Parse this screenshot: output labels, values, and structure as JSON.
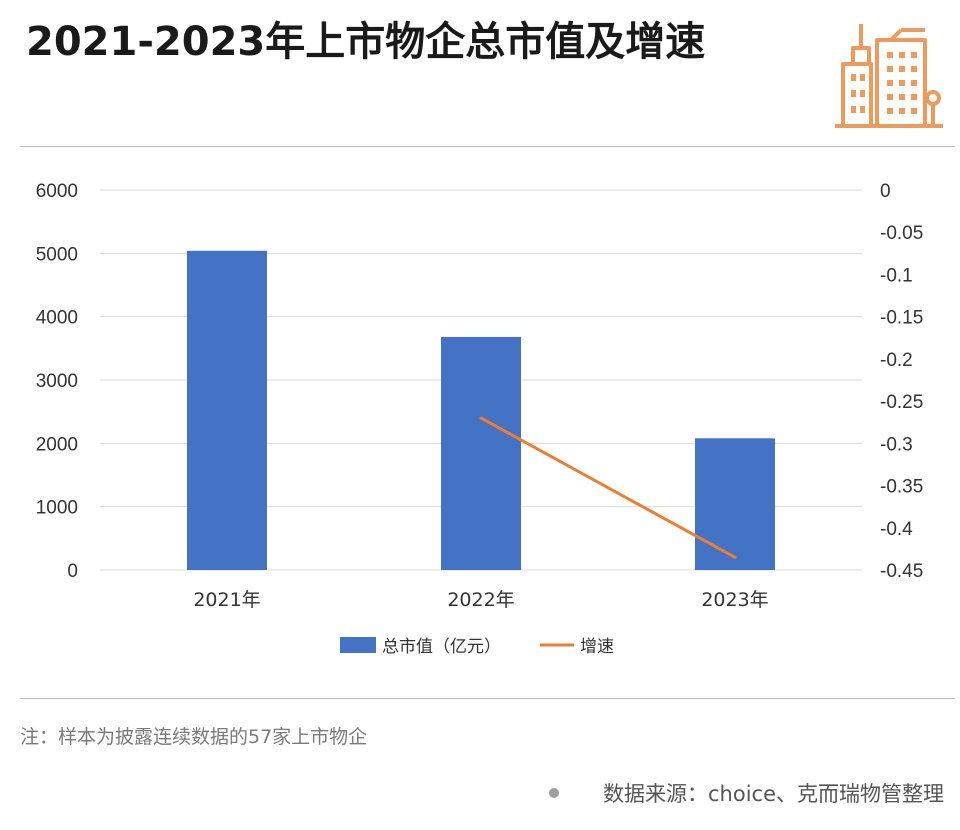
{
  "title": "2021-2023年上市物企总市值及增速",
  "logo_icon": "buildings-icon",
  "chart_data": {
    "type": "bar+line",
    "categories": [
      "2021年",
      "2022年",
      "2023年"
    ],
    "series": [
      {
        "name": "总市值（亿元）",
        "type": "bar",
        "axis": "left",
        "color": "#4472C4",
        "values": [
          5040,
          3680,
          2080
        ]
      },
      {
        "name": "增速",
        "type": "line",
        "axis": "right",
        "color": "#ED7D31",
        "values": [
          null,
          -0.27,
          -0.435
        ]
      }
    ],
    "y_left": {
      "min": 0,
      "max": 6000,
      "step": 1000,
      "tick_labels": [
        "0",
        "1000",
        "2000",
        "3000",
        "4000",
        "5000",
        "6000"
      ]
    },
    "y_right": {
      "min": -0.45,
      "max": 0,
      "step": 0.05,
      "tick_labels": [
        "0",
        "-0.05",
        "-0.1",
        "-0.15",
        "-0.2",
        "-0.25",
        "-0.3",
        "-0.35",
        "-0.4",
        "-0.45"
      ]
    },
    "grid": true,
    "legend_position": "bottom"
  },
  "note": "注：样本为披露连续数据的57家上市物企",
  "source": "数据来源：choice、克而瑞物管整理",
  "colors": {
    "bar": "#4472C4",
    "line": "#ED7D31",
    "grid": "#d9d9d9",
    "logo": "#ED9A5B"
  }
}
